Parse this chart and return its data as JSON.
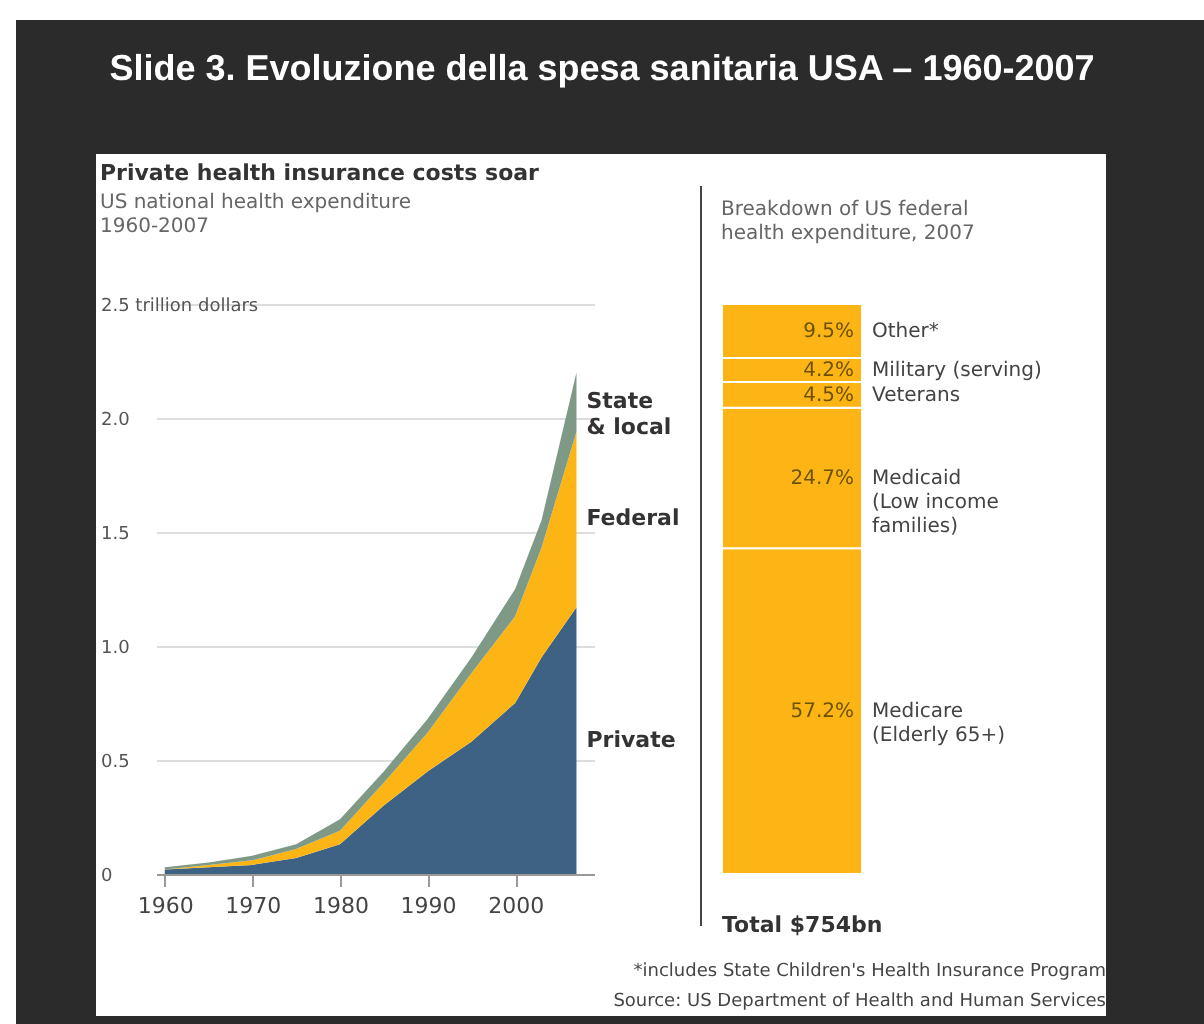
{
  "chart_data": [
    {
      "type": "area",
      "title": "Private health insurance costs soar",
      "subtitle": "US national health expenditure 1960-2007",
      "annotations": [
        "Slide 3. Evoluzione della spesa sanitaria USA – 1960-2007"
      ],
      "stacked": true,
      "legend": false,
      "grid": "y",
      "x": [
        1960,
        1965,
        1970,
        1975,
        1980,
        1985,
        1990,
        1995,
        2000,
        2003,
        2007
      ],
      "xlim": [
        1959,
        2009
      ],
      "xticks": [
        1960,
        1970,
        1980,
        1990,
        2000
      ],
      "ylim": [
        0,
        2.5
      ],
      "yticks": [
        0,
        0.5,
        {
          "value": 1,
          "label": "1.0"
        },
        1.5,
        {
          "value": 2,
          "label": "2.0"
        },
        {
          "value": 2.5,
          "label": "2.5 trillion dollars"
        }
      ],
      "series": [
        {
          "name": "Private",
          "color": "#3d6284",
          "values": [
            0.02,
            0.03,
            0.04,
            0.07,
            0.13,
            0.3,
            0.45,
            0.58,
            0.75,
            0.95,
            1.17
          ]
        },
        {
          "name": "Federal",
          "color": "#fdb515",
          "values": [
            0.0,
            0.01,
            0.02,
            0.04,
            0.06,
            0.1,
            0.17,
            0.3,
            0.38,
            0.48,
            0.77
          ]
        },
        {
          "name": "State & local",
          "color": "#7e9a86",
          "values": [
            0.01,
            0.01,
            0.02,
            0.02,
            0.05,
            0.05,
            0.06,
            0.07,
            0.12,
            0.12,
            0.26
          ]
        }
      ]
    },
    {
      "type": "bar",
      "title": "Breakdown of US federal health expenditure, 2007",
      "stacked": true,
      "legend": false,
      "tick_labels": false,
      "categories": [
        null
      ],
      "ylim": [
        0,
        100.1
      ],
      "annotations": [
        "Total $754bn",
        "*includes State Children's Health Insurance Program",
        "Source: US Department of Health and Human Services"
      ],
      "series": [
        {
          "name": "Medicare (Elderly 65+)",
          "color": "#fdb515",
          "values": [
            57.2
          ],
          "value_labels": [
            "57.2%"
          ]
        },
        {
          "name": "Medicaid (Low income families)",
          "color": "#fdb515",
          "values": [
            24.7
          ],
          "value_labels": [
            "24.7%"
          ]
        },
        {
          "name": "Veterans",
          "color": "#fdb515",
          "values": [
            4.5
          ],
          "value_labels": [
            "4.5%"
          ]
        },
        {
          "name": "Military (serving)",
          "color": "#fdb515",
          "values": [
            4.2
          ],
          "value_labels": [
            "4.2%"
          ]
        },
        {
          "name": "Other*",
          "color": "#fdb515",
          "values": [
            9.5
          ],
          "value_labels": [
            "9.5%"
          ]
        }
      ]
    }
  ]
}
